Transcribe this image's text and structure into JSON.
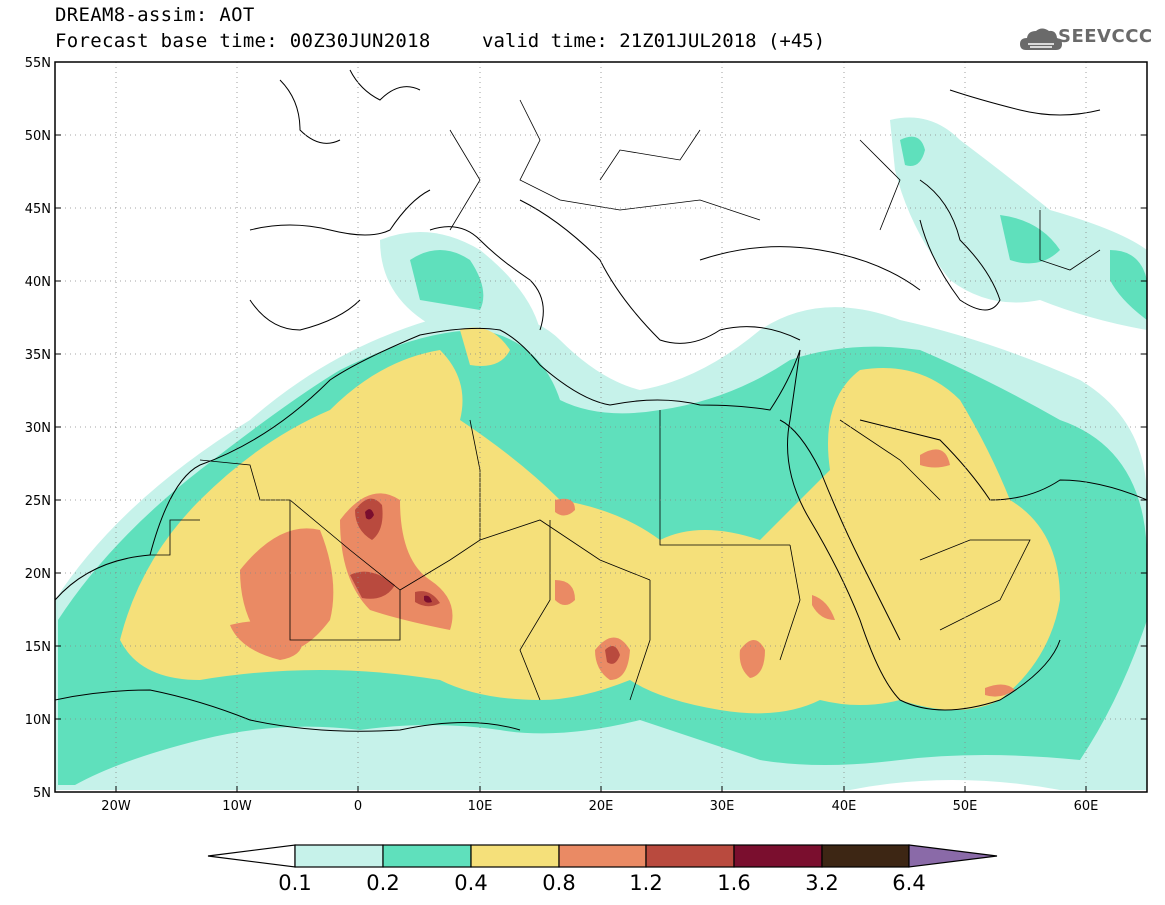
{
  "header": {
    "title": "DREAM8-assim: AOT",
    "base_time": "Forecast base time: 00Z30JUN2018",
    "valid_time": "valid time: 21Z01JUL2018 (+45)"
  },
  "logo": {
    "text": "SEEVCCC",
    "icon": "cloud-icon",
    "color": "#6a6a6a"
  },
  "map": {
    "lon_range": [
      -25,
      65
    ],
    "lat_range": [
      5,
      55
    ],
    "lat_ticks": [
      "55N",
      "50N",
      "45N",
      "40N",
      "35N",
      "30N",
      "25N",
      "20N",
      "15N",
      "10N",
      "5N"
    ],
    "lon_ticks": [
      "20W",
      "10W",
      "0",
      "10E",
      "20E",
      "30E",
      "40E",
      "50E",
      "60E"
    ],
    "grid": "dotted"
  },
  "colorbar": {
    "labels": [
      "0.1",
      "0.2",
      "0.4",
      "0.8",
      "1.2",
      "1.6",
      "3.2",
      "6.4"
    ],
    "colors": [
      "#ffffff",
      "#c6f2ea",
      "#5fe0bc",
      "#f5e07a",
      "#ea8a64",
      "#b94a3e",
      "#7a0e2e",
      "#3d2614",
      "#8a6aa8"
    ]
  },
  "chart_data": {
    "type": "heatmap",
    "title": "DREAM8-assim: AOT",
    "levels": [
      0.1,
      0.2,
      0.4,
      0.8,
      1.2,
      1.6,
      3.2,
      6.4
    ],
    "xlim": [
      -25,
      65
    ],
    "ylim": [
      5,
      55
    ]
  }
}
